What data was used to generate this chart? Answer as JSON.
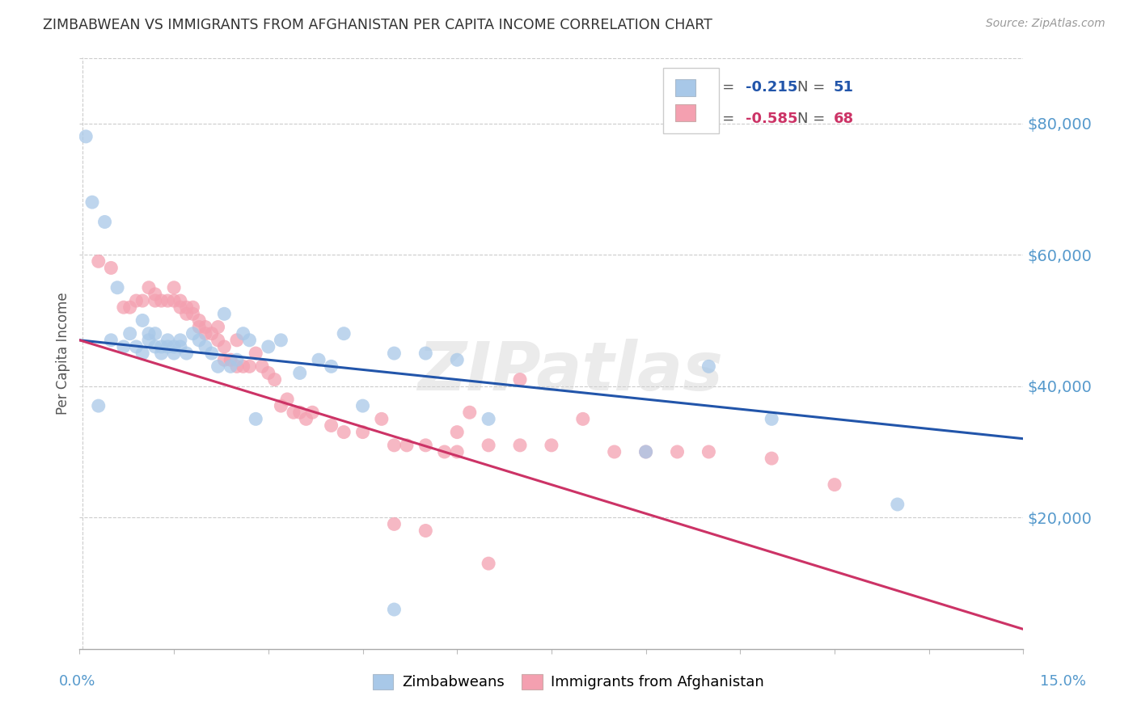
{
  "title": "ZIMBABWEAN VS IMMIGRANTS FROM AFGHANISTAN PER CAPITA INCOME CORRELATION CHART",
  "source": "Source: ZipAtlas.com",
  "ylabel": "Per Capita Income",
  "ytick_values": [
    20000,
    40000,
    60000,
    80000
  ],
  "ymax": 90000,
  "xmax": 0.15,
  "legend_blue_r": "-0.215",
  "legend_blue_n": "51",
  "legend_pink_r": "-0.585",
  "legend_pink_n": "68",
  "legend_label_blue": "Zimbabweans",
  "legend_label_pink": "Immigrants from Afghanistan",
  "watermark": "ZIPatlas",
  "blue_color": "#A8C8E8",
  "pink_color": "#F4A0B0",
  "blue_line_color": "#2255AA",
  "pink_line_color": "#CC3366",
  "blue_legend_color": "#2255AA",
  "pink_legend_color": "#CC3366",
  "zim_x": [
    0.001,
    0.002,
    0.003,
    0.004,
    0.005,
    0.006,
    0.007,
    0.008,
    0.009,
    0.01,
    0.01,
    0.011,
    0.011,
    0.012,
    0.012,
    0.013,
    0.013,
    0.014,
    0.014,
    0.015,
    0.015,
    0.016,
    0.016,
    0.017,
    0.018,
    0.019,
    0.02,
    0.021,
    0.022,
    0.023,
    0.024,
    0.025,
    0.026,
    0.027,
    0.028,
    0.03,
    0.032,
    0.035,
    0.038,
    0.04,
    0.042,
    0.045,
    0.05,
    0.055,
    0.06,
    0.065,
    0.09,
    0.1,
    0.11,
    0.13,
    0.05
  ],
  "zim_y": [
    78000,
    68000,
    37000,
    65000,
    47000,
    55000,
    46000,
    48000,
    46000,
    50000,
    45000,
    48000,
    47000,
    46000,
    48000,
    46000,
    45000,
    46000,
    47000,
    45000,
    46000,
    46000,
    47000,
    45000,
    48000,
    47000,
    46000,
    45000,
    43000,
    51000,
    43000,
    44000,
    48000,
    47000,
    35000,
    46000,
    47000,
    42000,
    44000,
    43000,
    48000,
    37000,
    45000,
    45000,
    44000,
    35000,
    30000,
    43000,
    35000,
    22000,
    6000
  ],
  "afg_x": [
    0.003,
    0.005,
    0.007,
    0.008,
    0.009,
    0.01,
    0.011,
    0.012,
    0.012,
    0.013,
    0.014,
    0.015,
    0.015,
    0.016,
    0.016,
    0.017,
    0.017,
    0.018,
    0.018,
    0.019,
    0.019,
    0.02,
    0.02,
    0.021,
    0.022,
    0.022,
    0.023,
    0.023,
    0.024,
    0.025,
    0.025,
    0.026,
    0.027,
    0.028,
    0.029,
    0.03,
    0.031,
    0.032,
    0.033,
    0.034,
    0.035,
    0.036,
    0.037,
    0.04,
    0.042,
    0.045,
    0.048,
    0.05,
    0.052,
    0.055,
    0.058,
    0.06,
    0.062,
    0.065,
    0.07,
    0.075,
    0.08,
    0.085,
    0.09,
    0.095,
    0.1,
    0.11,
    0.12,
    0.05,
    0.055,
    0.06,
    0.065,
    0.07
  ],
  "afg_y": [
    59000,
    58000,
    52000,
    52000,
    53000,
    53000,
    55000,
    53000,
    54000,
    53000,
    53000,
    53000,
    55000,
    53000,
    52000,
    52000,
    51000,
    52000,
    51000,
    50000,
    49000,
    48000,
    49000,
    48000,
    49000,
    47000,
    44000,
    46000,
    44000,
    43000,
    47000,
    43000,
    43000,
    45000,
    43000,
    42000,
    41000,
    37000,
    38000,
    36000,
    36000,
    35000,
    36000,
    34000,
    33000,
    33000,
    35000,
    31000,
    31000,
    31000,
    30000,
    33000,
    36000,
    31000,
    31000,
    31000,
    35000,
    30000,
    30000,
    30000,
    30000,
    29000,
    25000,
    19000,
    18000,
    30000,
    13000,
    41000
  ]
}
